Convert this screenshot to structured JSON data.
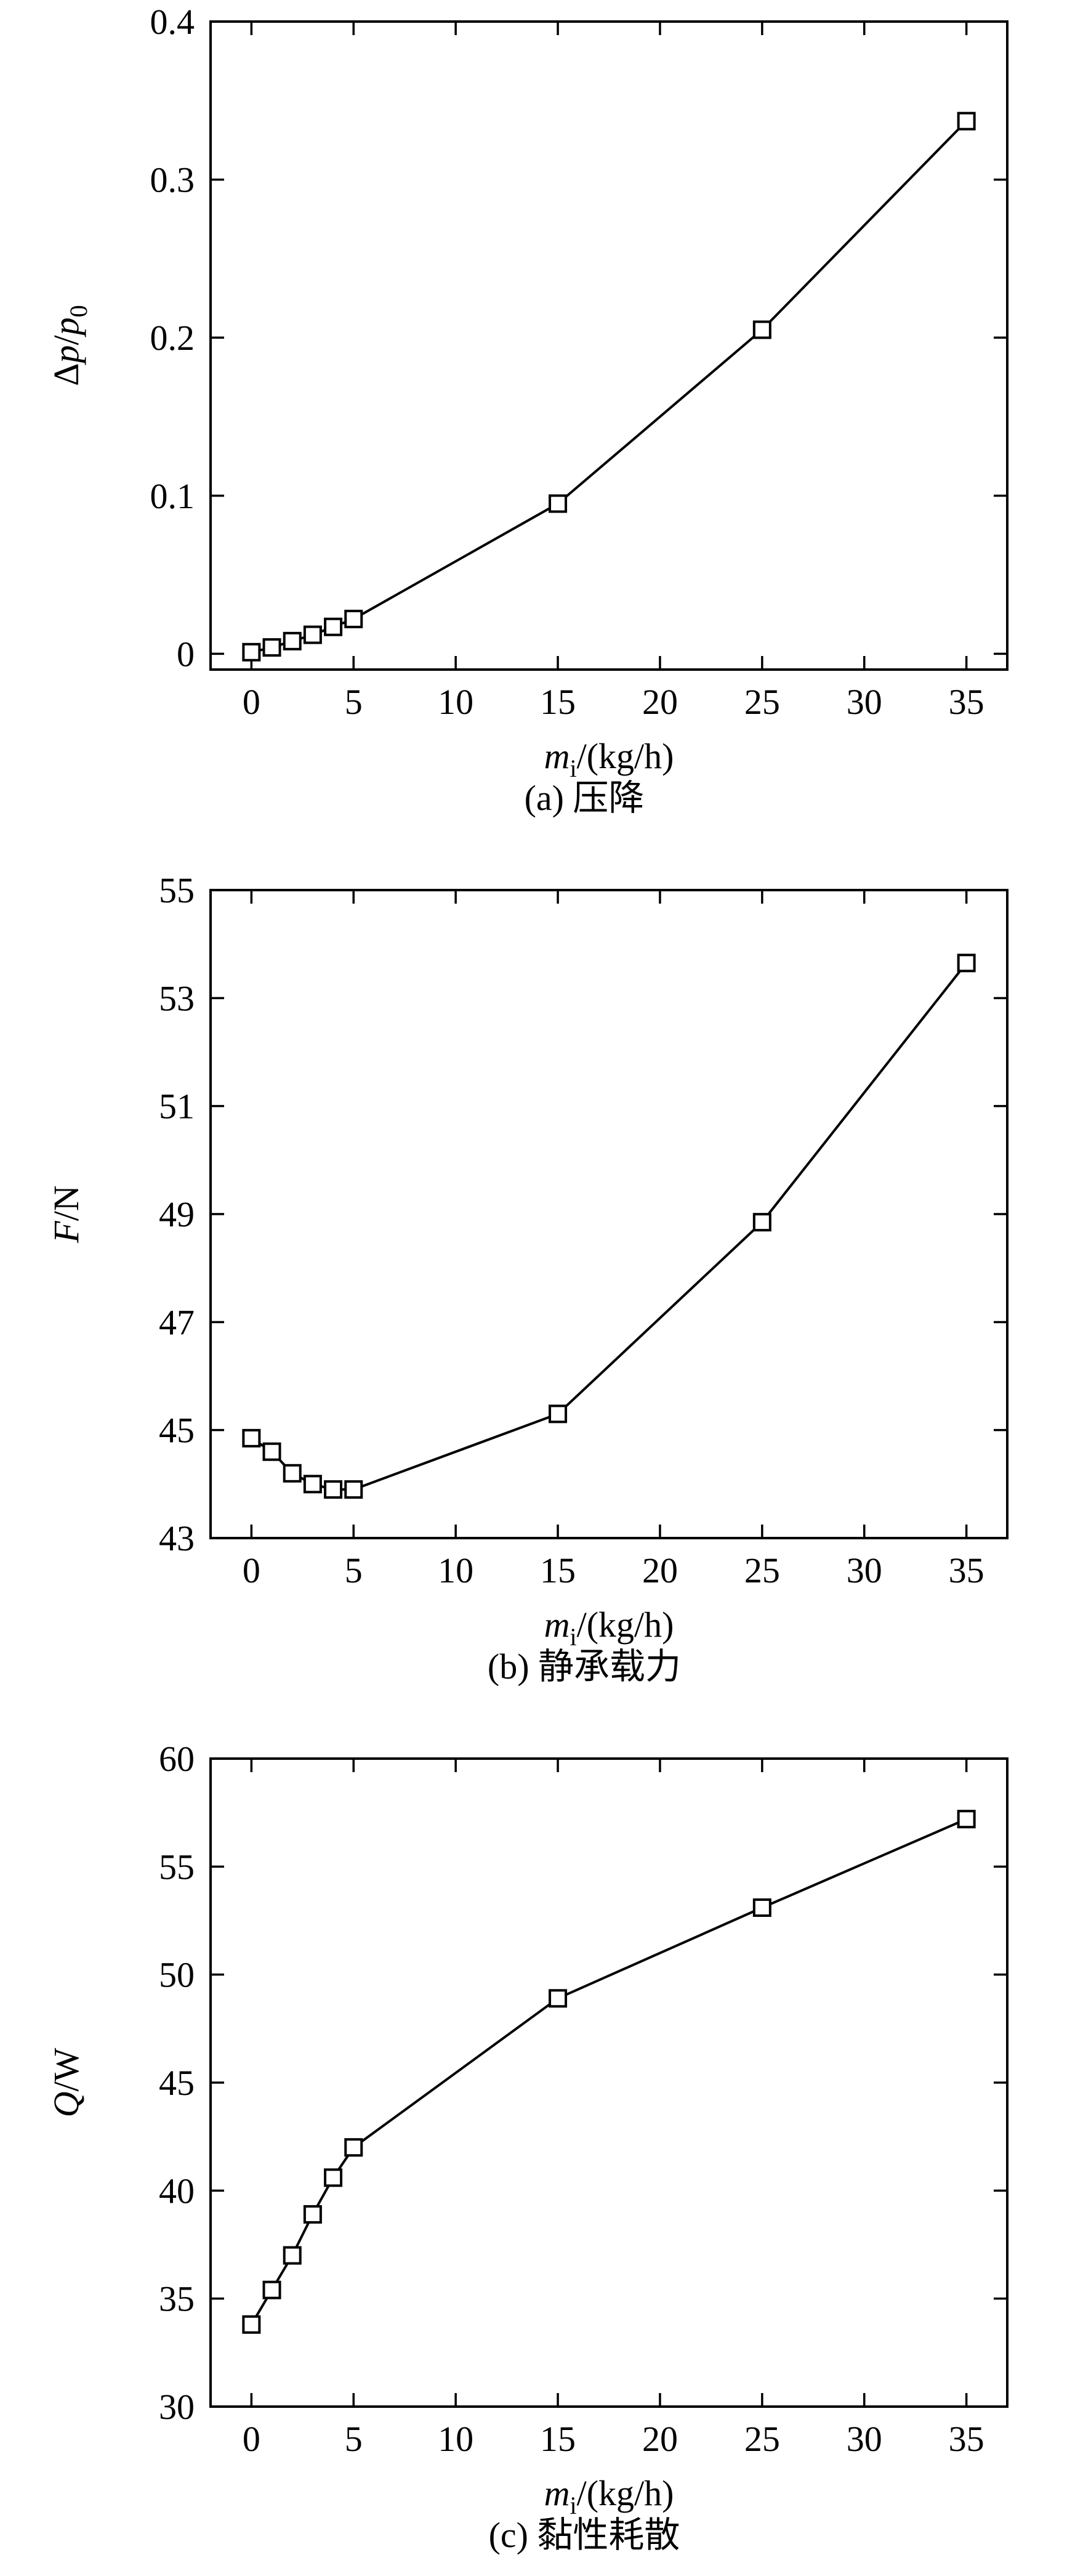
{
  "chart_data": [
    {
      "type": "line",
      "caption": "(a) 压降",
      "ylabel_parts": [
        "Δ",
        "p",
        "/",
        "p",
        "0"
      ],
      "xlabel_parts": [
        "m",
        "i",
        "/(kg/h)"
      ],
      "xlim": [
        -2,
        37
      ],
      "ylim": [
        -0.01,
        0.4
      ],
      "xticks": [
        0,
        5,
        10,
        15,
        20,
        25,
        30,
        35
      ],
      "xtick_labels": [
        "0",
        "5",
        "10",
        "15",
        "20",
        "25",
        "30",
        "35"
      ],
      "yticks": [
        0,
        0.1,
        0.2,
        0.3,
        0.4
      ],
      "ytick_labels": [
        "0",
        "0.1",
        "0.2",
        "0.3",
        "0.4"
      ],
      "series": [
        {
          "x": [
            0,
            1,
            2,
            3,
            4,
            5,
            15,
            25,
            35
          ],
          "y": [
            0.001,
            0.004,
            0.008,
            0.012,
            0.017,
            0.022,
            0.095,
            0.205,
            0.337
          ]
        }
      ],
      "grid": false
    },
    {
      "type": "line",
      "caption": "(b) 静承载力",
      "ylabel_parts": [
        "F",
        "/N"
      ],
      "xlabel_parts": [
        "m",
        "i",
        "/(kg/h)"
      ],
      "xlim": [
        -2,
        37
      ],
      "ylim": [
        43,
        55
      ],
      "xticks": [
        0,
        5,
        10,
        15,
        20,
        25,
        30,
        35
      ],
      "xtick_labels": [
        "0",
        "5",
        "10",
        "15",
        "20",
        "25",
        "30",
        "35"
      ],
      "yticks": [
        43,
        45,
        47,
        49,
        51,
        53,
        55
      ],
      "ytick_labels": [
        "43",
        "45",
        "47",
        "49",
        "51",
        "53",
        "55"
      ],
      "series": [
        {
          "x": [
            0,
            1,
            2,
            3,
            4,
            5,
            15,
            25,
            35
          ],
          "y": [
            44.85,
            44.6,
            44.2,
            44.0,
            43.9,
            43.9,
            45.3,
            48.85,
            53.65
          ]
        }
      ],
      "grid": false
    },
    {
      "type": "line",
      "caption": "(c) 黏性耗散",
      "ylabel_parts": [
        "Q",
        "/W"
      ],
      "xlabel_parts": [
        "m",
        "i",
        "/(kg/h)"
      ],
      "xlim": [
        -2,
        37
      ],
      "ylim": [
        30,
        60
      ],
      "xticks": [
        0,
        5,
        10,
        15,
        20,
        25,
        30,
        35
      ],
      "xtick_labels": [
        "0",
        "5",
        "10",
        "15",
        "20",
        "25",
        "30",
        "35"
      ],
      "yticks": [
        30,
        35,
        40,
        45,
        50,
        55,
        60
      ],
      "ytick_labels": [
        "30",
        "35",
        "40",
        "45",
        "50",
        "55",
        "60"
      ],
      "series": [
        {
          "x": [
            0,
            1,
            2,
            3,
            4,
            5,
            15,
            25,
            35
          ],
          "y": [
            33.8,
            35.4,
            37.0,
            38.9,
            40.6,
            42.0,
            48.9,
            53.1,
            57.2
          ]
        }
      ],
      "grid": false
    }
  ]
}
